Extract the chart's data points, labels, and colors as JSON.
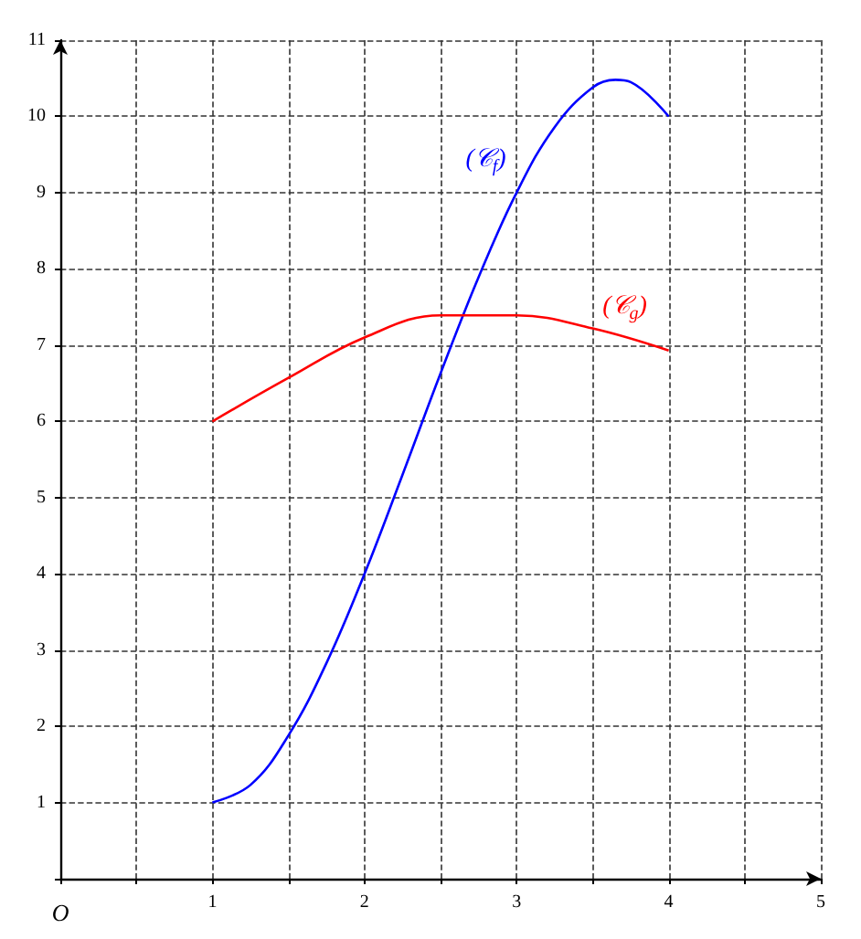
{
  "chart_data": {
    "type": "line",
    "xlim": [
      0,
      5
    ],
    "ylim": [
      0,
      11
    ],
    "xticks": [
      {
        "value": 0,
        "label": "O"
      },
      {
        "value": 0.5,
        "label": null
      },
      1,
      {
        "value": 1.5,
        "label": null
      },
      2,
      {
        "value": 2.5,
        "label": null
      },
      3,
      {
        "value": 3.5,
        "label": null
      },
      4,
      {
        "value": 4.5,
        "label": null
      },
      5
    ],
    "yticks": [
      1,
      2,
      3,
      4,
      5,
      6,
      7,
      8,
      9,
      10,
      11
    ],
    "grid": true,
    "marker": "none",
    "line_style": "solid",
    "series": [
      {
        "color": "#0000ff",
        "x": [
          1,
          1.25,
          1.5,
          1.75,
          2,
          2.25,
          2.5,
          2.75,
          3,
          3.25,
          3.5,
          3.65,
          3.75,
          4
        ],
        "values": [
          1,
          1.23,
          1.88,
          2.83,
          4,
          5.3,
          6.63,
          7.89,
          9,
          9.86,
          10.38,
          10.48,
          10.45,
          10
        ]
      },
      {
        "color": "#ff0000",
        "x": [
          1,
          1.5,
          2,
          2.5,
          3,
          3.5,
          4
        ],
        "values": [
          6,
          6.57,
          7.1,
          7.39,
          7.39,
          7.22,
          6.93
        ]
      }
    ],
    "annotations": [
      "(𝒞$_{f}$)",
      "(𝒞$_{g}$)"
    ]
  }
}
